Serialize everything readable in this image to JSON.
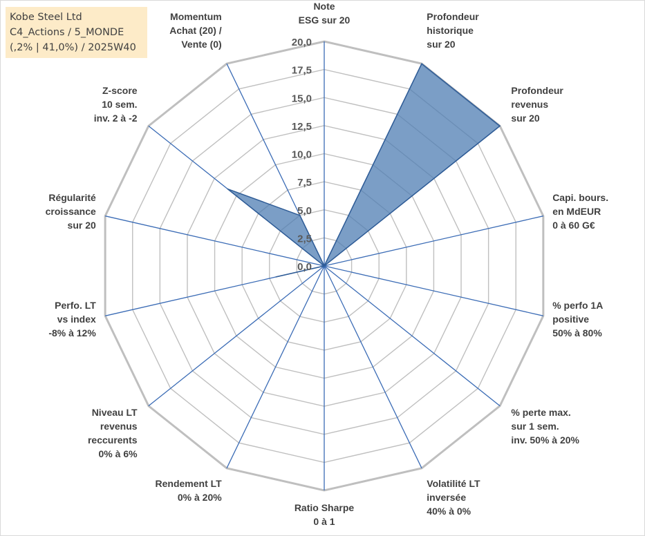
{
  "title_box": {
    "line1": "Kobe Steel Ltd",
    "line2": "C4_Actions / 5_MONDE",
    "line3": "(,2% | 41,0%) / 2025W40",
    "background": "#fdebc8"
  },
  "chart_data": {
    "type": "radar",
    "rmin": 0,
    "rmax": 20,
    "tick_values": [
      0,
      2.5,
      5,
      7.5,
      10,
      12.5,
      15,
      17.5,
      20
    ],
    "tick_labels": [
      "0,0",
      "2,5",
      "5,0",
      "7,5",
      "10,0",
      "12,5",
      "15,0",
      "17,5",
      "20,0"
    ],
    "grid": true,
    "axes": [
      [
        "Note",
        "ESG sur 20"
      ],
      [
        "Profondeur",
        "historique",
        "sur 20"
      ],
      [
        "Profondeur",
        "revenus",
        "sur 20"
      ],
      [
        "Capi. bours.",
        "en MdEUR",
        "0 à 60 G€"
      ],
      [
        "% perfo 1A",
        "positive",
        "50% à 80%"
      ],
      [
        "% perte max.",
        "sur 1 sem.",
        "inv. 50% à 20%"
      ],
      [
        "Volatilité LT",
        "inversée",
        "40% à 0%"
      ],
      [
        "Ratio Sharpe",
        "0 à 1"
      ],
      [
        "Rendement LT",
        "0% à 20%"
      ],
      [
        "Niveau LT",
        "revenus",
        "reccurents",
        "0% à 6%"
      ],
      [
        "Perfo. LT",
        "vs index",
        "-8% à 12%"
      ],
      [
        "Régularité",
        "croissance",
        "sur 20"
      ],
      [
        "Z-score",
        "10 sem.",
        "inv. 2 à -2"
      ],
      [
        "Momentum",
        "Achat (20) /",
        "Vente (0)"
      ]
    ],
    "series": [
      {
        "values": [
          0,
          20,
          20,
          0,
          0,
          0,
          0,
          0,
          0,
          0,
          4.4,
          0,
          11,
          5
        ],
        "fill": "#4f7eb3",
        "fill_opacity": 0.75,
        "stroke": "#2f5c96"
      }
    ],
    "colors": {
      "grid": "#bfbfbf",
      "axis_lines": "#3a6bb5",
      "labels": "#404040"
    }
  }
}
